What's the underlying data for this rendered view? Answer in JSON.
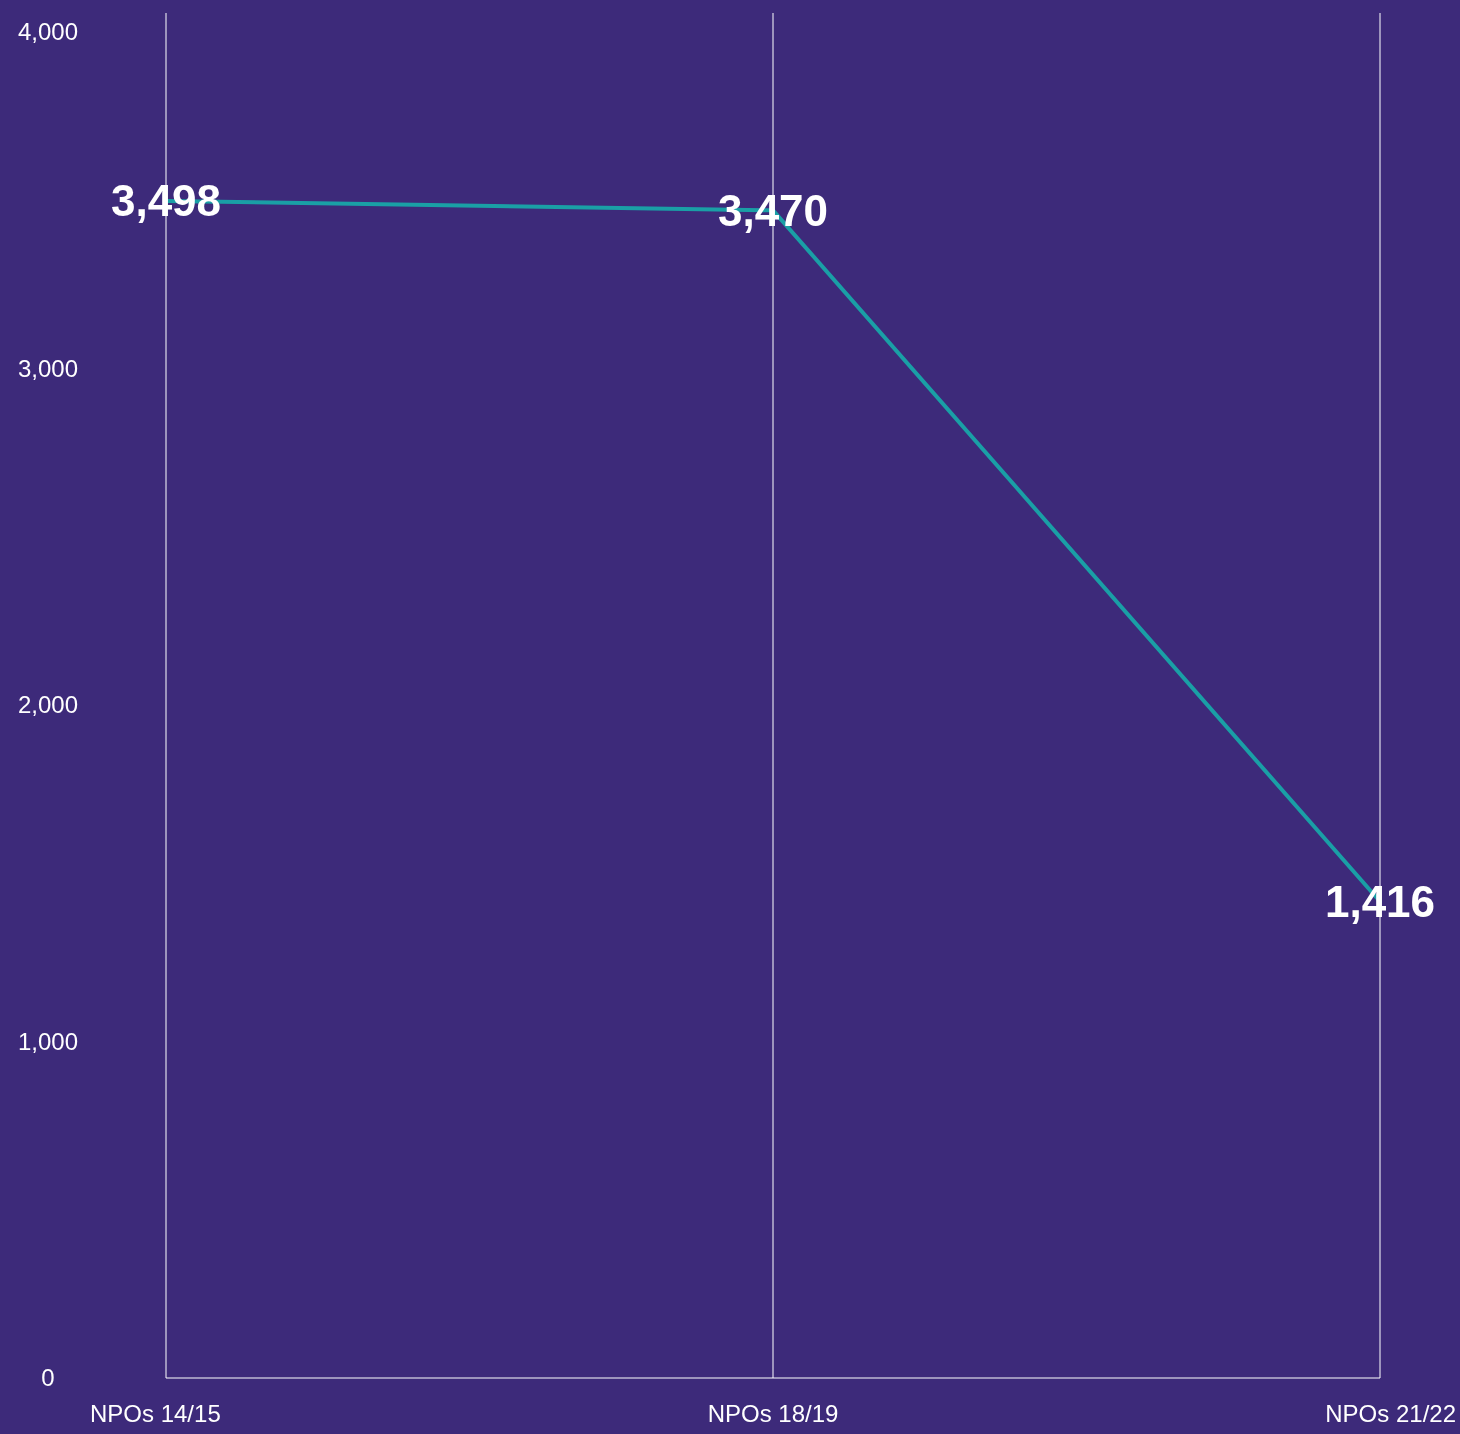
{
  "chart_data": {
    "type": "line",
    "categories": [
      "NPOs 14/15",
      "NPOs 18/19",
      "NPOs 21/22"
    ],
    "series": [
      {
        "color": "#1a9fa6",
        "values": [
          3498,
          3470,
          1416
        ],
        "value_labels": [
          "3,498",
          "3,470",
          "1,416"
        ]
      }
    ],
    "ylim": [
      0,
      4000
    ],
    "yticks": [
      0,
      {
        "value": 1000,
        "label": "1,000"
      },
      {
        "value": 2000,
        "label": "2,000"
      },
      {
        "value": 3000,
        "label": "3,000"
      },
      {
        "value": 4000,
        "label": "4,000"
      }
    ],
    "grid": "x",
    "marker": "none",
    "line_style": "solid"
  }
}
